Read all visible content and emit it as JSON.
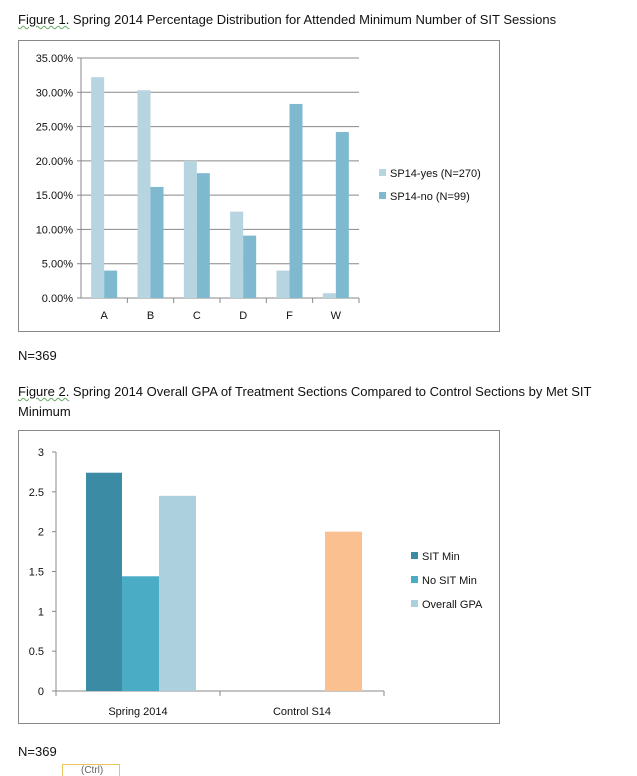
{
  "figure1": {
    "label": "Figure 1.",
    "title": " Spring 2014  Percentage Distribution for Attended Minimum Number of SIT Sessions"
  },
  "figure2": {
    "label": "Figure 2.",
    "title": " Spring 2014  Overall GPA of Treatment Sections Compared to Control Sections by Met SIT Minimum"
  },
  "n1": "N=369",
  "n2": "N=369",
  "paste_button": "(Ctrl)",
  "chart_data": [
    {
      "type": "bar",
      "categories": [
        "A",
        "B",
        "C",
        "D",
        "F",
        "W"
      ],
      "ylim": [
        0,
        35
      ],
      "yticks": [
        "0.00%",
        "5.00%",
        "10.00%",
        "15.00%",
        "20.00%",
        "25.00%",
        "30.00%",
        "35.00%"
      ],
      "grid": true,
      "legend": "right",
      "series": [
        {
          "name": "SP14-yes (N=270)",
          "color": "#b7d5e0",
          "values": [
            32.2,
            30.3,
            20.0,
            12.6,
            4.0,
            0.7
          ]
        },
        {
          "name": "SP14-no (N=99)",
          "color": "#7fb9cf",
          "values": [
            4.0,
            16.2,
            18.2,
            9.1,
            28.3,
            24.2
          ]
        }
      ]
    },
    {
      "type": "bar",
      "categories": [
        "Spring 2014",
        "Control S14"
      ],
      "ylim": [
        0,
        3
      ],
      "yticks": [
        "0",
        "0.5",
        "1",
        "1.5",
        "2",
        "2.5",
        "3"
      ],
      "grid": false,
      "legend": "right",
      "series": [
        {
          "name": "SIT Min",
          "color": "#3a8ba3",
          "values": [
            2.74,
            null
          ]
        },
        {
          "name": "No SIT Min",
          "color": "#4bacc6",
          "values": [
            1.44,
            null
          ]
        },
        {
          "name": "Overall GPA",
          "color": "#acd0de",
          "values": [
            2.45,
            null
          ]
        },
        {
          "name": "",
          "color": "#fac08f",
          "values": [
            null,
            2.0
          ]
        }
      ]
    }
  ]
}
